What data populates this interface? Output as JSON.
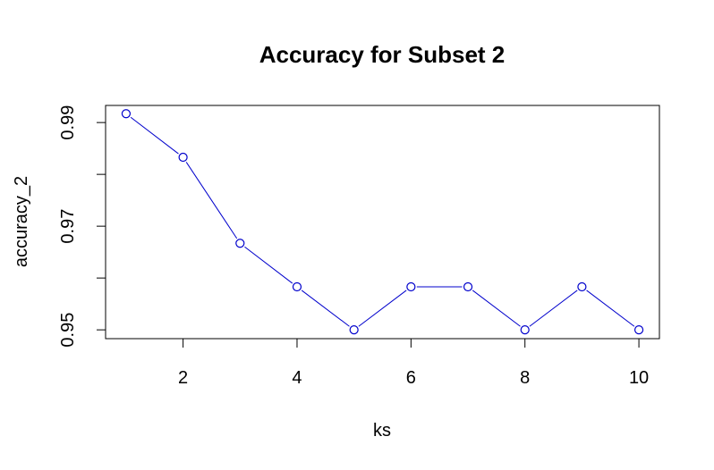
{
  "chart_data": {
    "type": "line",
    "title": "Accuracy for Subset 2",
    "xlabel": "ks",
    "ylabel": "accuracy_2",
    "x": [
      1,
      2,
      3,
      4,
      5,
      6,
      7,
      8,
      9,
      10
    ],
    "series": [
      {
        "values": [
          0.9917,
          0.9833,
          0.9667,
          0.9583,
          0.95,
          0.9583,
          0.9583,
          0.95,
          0.9583,
          0.95
        ]
      }
    ],
    "xlim": [
      0.64,
      10.36
    ],
    "ylim": [
      0.9483,
      0.9933
    ],
    "xticks": [
      2,
      4,
      6,
      8,
      10
    ],
    "xtick_labels": [
      "2",
      "4",
      "6",
      "8",
      "10"
    ],
    "yticks": [
      0.95,
      0.96,
      0.97,
      0.98,
      0.99
    ],
    "ytick_labels": [
      "0.95",
      "",
      "0.97",
      "",
      "0.99"
    ],
    "grid": false,
    "line_color": "#0000cc",
    "marker": "open-circle"
  }
}
